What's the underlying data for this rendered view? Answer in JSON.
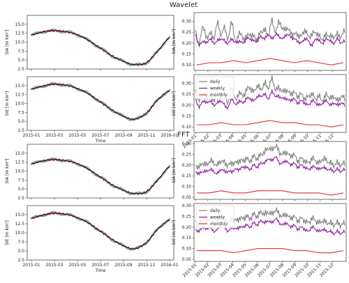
{
  "figure": {
    "title_top": "Wavelet",
    "title_bottom": "FFT"
  },
  "colors": {
    "obs_scatter": "#5aa7b0",
    "smooth_black": "#111111",
    "smooth_red": "#e02020",
    "daily": "#7f7f7f",
    "weekly": "#8b1a9b",
    "monthly": "#e03030"
  },
  "chart_data": [
    {
      "id": "wavelet-sia-series",
      "type": "line",
      "ylabel": "SIA [m km²]",
      "xlabel": "",
      "ylim": [
        2.5,
        17.5
      ],
      "yticks": [
        2.5,
        5.0,
        7.5,
        10.0,
        12.5,
        15.0
      ],
      "xticks": [
        "2015-01",
        "2015-03",
        "2015-05",
        "2015-07",
        "2015-09",
        "2015-11",
        "2016-01"
      ],
      "xtick_labels_shown": false,
      "x_months": [
        0,
        1,
        2,
        3,
        4,
        5,
        6,
        7,
        8,
        9,
        10,
        11,
        12
      ],
      "series": [
        {
          "values": [
            12.0,
            12.9,
            13.2,
            12.9,
            12.1,
            10.4,
            8.3,
            6.2,
            4.6,
            3.7,
            4.3,
            7.6,
            11.3
          ]
        }
      ]
    },
    {
      "id": "wavelet-sia-error",
      "type": "line",
      "ylabel": "SIA [m km²]",
      "ylim": [
        0.075,
        0.34
      ],
      "yticks": [
        0.1,
        0.15,
        0.2,
        0.25,
        0.3
      ],
      "series": [
        {
          "name": "daily",
          "values": [
            0.26,
            0.19,
            0.28,
            0.22,
            0.25,
            0.22,
            0.29,
            0.24,
            0.27,
            0.22,
            0.3,
            0.2,
            0.25,
            0.22,
            0.23,
            0.24,
            0.23,
            0.22,
            0.25,
            0.26,
            0.24,
            0.3,
            0.25,
            0.3,
            0.26,
            0.27,
            0.25,
            0.24,
            0.24,
            0.23,
            0.26,
            0.23,
            0.24,
            0.25,
            0.23,
            0.22,
            0.24,
            0.23,
            0.23,
            0.24,
            0.23,
            0.26
          ]
        },
        {
          "name": "weekly",
          "values": [
            0.24,
            0.19,
            0.21,
            0.2,
            0.22,
            0.2,
            0.21,
            0.22,
            0.21,
            0.2,
            0.22,
            0.2,
            0.21,
            0.2,
            0.22,
            0.22,
            0.21,
            0.21,
            0.23,
            0.22,
            0.24,
            0.22,
            0.24,
            0.23,
            0.22,
            0.24,
            0.23,
            0.22,
            0.21,
            0.2,
            0.22,
            0.21,
            0.19,
            0.22,
            0.21,
            0.2,
            0.22,
            0.21,
            0.2,
            0.22,
            0.2,
            0.21
          ]
        },
        {
          "name": "monthly",
          "values": [
            0.1,
            0.11,
            0.11,
            0.12,
            0.11,
            0.12,
            0.13,
            0.12,
            0.11,
            0.12,
            0.11,
            0.1,
            0.11
          ]
        }
      ]
    },
    {
      "id": "wavelet-sie-series",
      "type": "line",
      "ylabel": "SIE [m km²]",
      "xlabel": "Time",
      "ylim": [
        2.5,
        17.5
      ],
      "yticks": [
        2.5,
        5.0,
        7.5,
        10.0,
        12.5,
        15.0
      ],
      "xticks": [
        "2015-01",
        "2015-03",
        "2015-05",
        "2015-07",
        "2015-09",
        "2015-11",
        "2016-01"
      ],
      "xtick_labels_shown": true,
      "x_months": [
        0,
        1,
        2,
        3,
        4,
        5,
        6,
        7,
        8,
        9,
        10,
        11,
        12
      ],
      "series": [
        {
          "values": [
            14.0,
            14.9,
            15.4,
            15.1,
            14.2,
            12.6,
            10.4,
            8.2,
            6.4,
            5.6,
            7.4,
            11.1,
            13.6
          ]
        }
      ]
    },
    {
      "id": "wavelet-sie-error",
      "type": "line",
      "ylabel": "SIE [m km²]",
      "ylim": [
        0.075,
        0.34
      ],
      "yticks": [
        0.1,
        0.15,
        0.2,
        0.25,
        0.3
      ],
      "xticks": [
        "2015-01",
        "2015-02",
        "2015-03",
        "2015-04",
        "2015-05",
        "2015-06",
        "2015-07",
        "2015-08",
        "2015-09",
        "2015-10",
        "2015-11",
        "2015-12"
      ],
      "legend": {
        "entries": [
          "daily",
          "weekly",
          "monthly"
        ],
        "position": "top-left"
      },
      "series": [
        {
          "name": "daily",
          "values": [
            0.27,
            0.22,
            0.26,
            0.23,
            0.25,
            0.22,
            0.27,
            0.24,
            0.26,
            0.21,
            0.28,
            0.22,
            0.26,
            0.24,
            0.27,
            0.28,
            0.26,
            0.29,
            0.27,
            0.3,
            0.28,
            0.32,
            0.27,
            0.28,
            0.26,
            0.27,
            0.25,
            0.26,
            0.24,
            0.25,
            0.23,
            0.24,
            0.25,
            0.23,
            0.24,
            0.22,
            0.25,
            0.23,
            0.24,
            0.22,
            0.24,
            0.23
          ]
        },
        {
          "name": "weekly",
          "values": [
            0.23,
            0.19,
            0.22,
            0.21,
            0.22,
            0.2,
            0.21,
            0.22,
            0.2,
            0.19,
            0.23,
            0.2,
            0.22,
            0.21,
            0.23,
            0.23,
            0.22,
            0.24,
            0.24,
            0.25,
            0.23,
            0.26,
            0.24,
            0.24,
            0.23,
            0.23,
            0.22,
            0.23,
            0.21,
            0.22,
            0.21,
            0.2,
            0.22,
            0.21,
            0.2,
            0.21,
            0.22,
            0.2,
            0.21,
            0.2,
            0.21,
            0.2
          ]
        },
        {
          "name": "monthly",
          "values": [
            0.11,
            0.11,
            0.12,
            0.11,
            0.11,
            0.12,
            0.13,
            0.12,
            0.12,
            0.11,
            0.11,
            0.1,
            0.11
          ]
        }
      ]
    },
    {
      "id": "fft-sia-series",
      "type": "line",
      "ylabel": "SIA [m km²]",
      "xlabel": "",
      "ylim": [
        2.5,
        17.5
      ],
      "yticks": [
        2.5,
        5.0,
        7.5,
        10.0,
        12.5,
        15.0
      ],
      "xticks": [
        "2015-01",
        "2015-03",
        "2015-05",
        "2015-07",
        "2015-09",
        "2015-11",
        "2016-01"
      ],
      "xtick_labels_shown": false,
      "x_months": [
        0,
        1,
        2,
        3,
        4,
        5,
        6,
        7,
        8,
        9,
        10,
        11,
        12
      ],
      "series": [
        {
          "values": [
            12.0,
            12.9,
            13.2,
            12.9,
            12.1,
            10.4,
            8.3,
            6.2,
            4.6,
            3.7,
            4.3,
            7.6,
            11.3
          ]
        }
      ]
    },
    {
      "id": "fft-sia-error",
      "type": "line",
      "ylabel": "SIA [m km²]",
      "ylim": [
        0.04,
        0.31
      ],
      "yticks": [
        0.05,
        0.1,
        0.15,
        0.2,
        0.25,
        0.3
      ],
      "series": [
        {
          "name": "daily",
          "values": [
            0.2,
            0.19,
            0.21,
            0.2,
            0.22,
            0.21,
            0.2,
            0.22,
            0.21,
            0.2,
            0.21,
            0.21,
            0.22,
            0.22,
            0.23,
            0.22,
            0.24,
            0.23,
            0.25,
            0.26,
            0.28,
            0.27,
            0.29,
            0.26,
            0.25,
            0.26,
            0.24,
            0.25,
            0.22,
            0.23,
            0.22,
            0.21,
            0.23,
            0.22,
            0.21,
            0.23,
            0.22,
            0.21,
            0.2,
            0.21,
            0.2,
            0.21
          ]
        },
        {
          "name": "weekly",
          "values": [
            0.17,
            0.16,
            0.17,
            0.17,
            0.18,
            0.17,
            0.16,
            0.18,
            0.17,
            0.17,
            0.17,
            0.18,
            0.18,
            0.19,
            0.19,
            0.18,
            0.2,
            0.19,
            0.21,
            0.21,
            0.23,
            0.22,
            0.24,
            0.21,
            0.21,
            0.22,
            0.2,
            0.21,
            0.19,
            0.2,
            0.19,
            0.18,
            0.19,
            0.19,
            0.18,
            0.19,
            0.18,
            0.18,
            0.17,
            0.18,
            0.17,
            0.18
          ]
        },
        {
          "name": "monthly",
          "values": [
            0.07,
            0.07,
            0.08,
            0.07,
            0.07,
            0.08,
            0.08,
            0.08,
            0.07,
            0.07,
            0.07,
            0.06,
            0.07
          ]
        }
      ]
    },
    {
      "id": "fft-sie-series",
      "type": "line",
      "ylabel": "SIE [m km²]",
      "xlabel": "Time",
      "ylim": [
        2.5,
        17.5
      ],
      "yticks": [
        2.5,
        5.0,
        7.5,
        10.0,
        12.5,
        15.0
      ],
      "xticks": [
        "2015-01",
        "2015-03",
        "2015-05",
        "2015-07",
        "2015-09",
        "2015-11",
        "2016-01"
      ],
      "xtick_labels_shown": true,
      "x_months": [
        0,
        1,
        2,
        3,
        4,
        5,
        6,
        7,
        8,
        9,
        10,
        11,
        12
      ],
      "series": [
        {
          "values": [
            14.0,
            14.9,
            15.4,
            15.1,
            14.2,
            12.6,
            10.4,
            8.2,
            6.4,
            5.6,
            7.4,
            11.1,
            13.6
          ]
        }
      ]
    },
    {
      "id": "fft-sie-error",
      "type": "line",
      "ylabel": "SIE [m km²]",
      "ylim": [
        0.04,
        0.31
      ],
      "yticks": [
        0.05,
        0.1,
        0.15,
        0.2,
        0.25,
        0.3
      ],
      "xticks": [
        "2015-01",
        "2015-02",
        "2015-03",
        "2015-04",
        "2015-05",
        "2015-06",
        "2015-07",
        "2015-08",
        "2015-09",
        "2015-10",
        "2015-11",
        "2015-12"
      ],
      "legend": {
        "entries": [
          "daily",
          "weekly",
          "monthly"
        ],
        "position": "top-left"
      },
      "series": [
        {
          "name": "daily",
          "values": [
            0.23,
            0.21,
            0.24,
            0.23,
            0.24,
            0.22,
            0.23,
            0.25,
            0.24,
            0.22,
            0.24,
            0.23,
            0.24,
            0.24,
            0.25,
            0.24,
            0.26,
            0.25,
            0.27,
            0.26,
            0.27,
            0.26,
            0.28,
            0.26,
            0.25,
            0.26,
            0.24,
            0.25,
            0.23,
            0.24,
            0.23,
            0.22,
            0.24,
            0.23,
            0.22,
            0.23,
            0.22,
            0.22,
            0.21,
            0.22,
            0.21,
            0.22
          ]
        },
        {
          "name": "weekly",
          "values": [
            0.19,
            0.18,
            0.2,
            0.19,
            0.2,
            0.18,
            0.19,
            0.21,
            0.2,
            0.18,
            0.2,
            0.19,
            0.2,
            0.2,
            0.21,
            0.2,
            0.22,
            0.21,
            0.23,
            0.22,
            0.23,
            0.22,
            0.24,
            0.22,
            0.21,
            0.22,
            0.2,
            0.21,
            0.19,
            0.2,
            0.19,
            0.18,
            0.2,
            0.19,
            0.18,
            0.19,
            0.18,
            0.18,
            0.17,
            0.18,
            0.17,
            0.18
          ]
        },
        {
          "name": "monthly",
          "values": [
            0.09,
            0.09,
            0.09,
            0.08,
            0.09,
            0.1,
            0.1,
            0.1,
            0.09,
            0.09,
            0.08,
            0.08,
            0.09
          ]
        }
      ]
    }
  ]
}
